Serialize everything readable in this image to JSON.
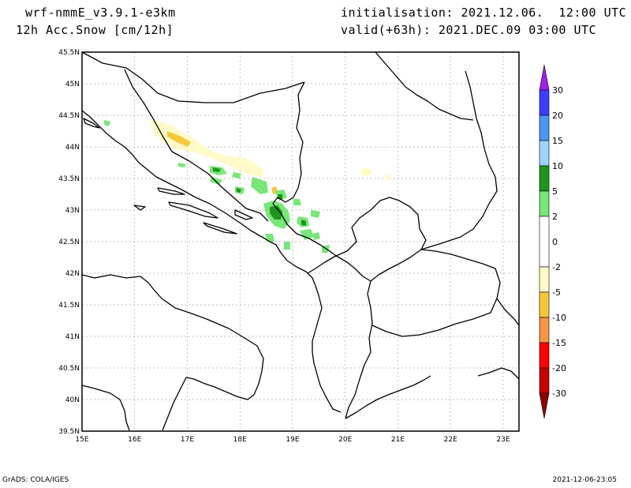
{
  "header": {
    "model": "wrf-nmmE_v3.9.1-e3km",
    "field": "12h Acc.Snow [cm/12h]",
    "initialisation": "initialisation: 2021.12.06.  12:00 UTC",
    "valid": "valid(+63h): 2021.DEC.09 03:00 UTC"
  },
  "footer": {
    "left": "GrADS: COLA/IGES",
    "right": "2021-12-06-23:05"
  },
  "map": {
    "lat_labels": [
      "45.5N",
      "45N",
      "44.5N",
      "44N",
      "43.5N",
      "43N",
      "42.5N",
      "42N",
      "41.5N",
      "41N",
      "40.5N",
      "40N",
      "39.5N"
    ],
    "lon_labels": [
      "15E",
      "16E",
      "17E",
      "18E",
      "19E",
      "20E",
      "21E",
      "22E",
      "23E"
    ],
    "lat_range": [
      39.5,
      45.5
    ],
    "lon_range": [
      15,
      23.3
    ],
    "grid": true
  },
  "colorbar": {
    "labels": [
      "30",
      "20",
      "15",
      "10",
      "5",
      "2",
      "0",
      "-2",
      "-5",
      "-10",
      "-15",
      "-20",
      "-30"
    ],
    "colors": {
      "purple": "#a020f0",
      "blue": "#3c3cff",
      "mid_blue": "#4a96f0",
      "light_blue": "#a0d2ff",
      "dark_green": "#1e961e",
      "green": "#78e678",
      "white": "#ffffff",
      "pale_yellow": "#fffac8",
      "gold": "#f5c83c",
      "orange": "#f59646",
      "red": "#ff0000",
      "dark_red": "#c80000",
      "maroon": "#8c0000"
    }
  }
}
